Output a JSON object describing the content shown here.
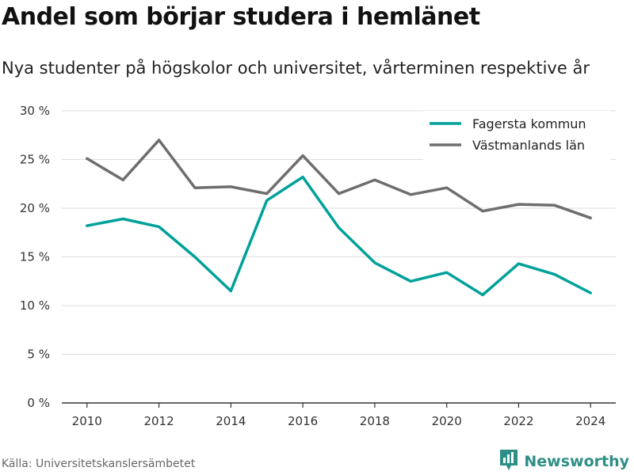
{
  "title": "Andel som börjar studera i hemlänet",
  "subtitle": "Nya studenter på högskolor och universitet, vårterminen respektive år",
  "source": "Källa: Universitetskanslersämbetet",
  "brand": {
    "name": "Newsworthy",
    "icon": "newsworthy-logo-icon",
    "color": "#2e8f86"
  },
  "chart_data": {
    "type": "line",
    "title": "Andel som börjar studera i hemlänet",
    "subtitle": "Nya studenter på högskolor och universitet, vårterminen respektive år",
    "x": [
      2010,
      2011,
      2012,
      2013,
      2014,
      2015,
      2016,
      2017,
      2018,
      2019,
      2020,
      2021,
      2022,
      2023,
      2024
    ],
    "x_ticks": [
      2010,
      2012,
      2014,
      2016,
      2018,
      2020,
      2022,
      2024
    ],
    "x_tick_labels": [
      "2010",
      "2012",
      "2014",
      "2016",
      "2018",
      "2020",
      "2022",
      "2024"
    ],
    "y_ticks": [
      0,
      5,
      10,
      15,
      20,
      25,
      30
    ],
    "y_tick_labels": [
      "0 %",
      "5 %",
      "10 %",
      "15 %",
      "20 %",
      "25 %",
      "30 %"
    ],
    "ylim": [
      0,
      30
    ],
    "xlim": [
      2009.3,
      2024.7
    ],
    "grid": "horizontal",
    "legend_position": "top-right",
    "series": [
      {
        "name": "Fagersta kommun",
        "color": "#00a19a",
        "values": [
          18.2,
          18.9,
          18.1,
          15.0,
          11.5,
          20.8,
          23.2,
          18.0,
          14.4,
          12.5,
          13.4,
          11.1,
          14.3,
          13.2,
          11.3
        ]
      },
      {
        "name": "Västmanlands län",
        "color": "#6e6e6e",
        "values": [
          25.1,
          22.9,
          27.0,
          22.1,
          22.2,
          21.5,
          25.4,
          21.5,
          22.9,
          21.4,
          22.1,
          19.7,
          20.4,
          20.3,
          19.0
        ]
      }
    ]
  }
}
